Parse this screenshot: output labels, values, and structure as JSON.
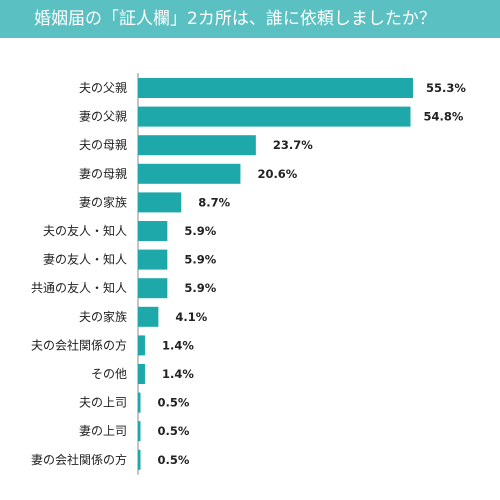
{
  "title": "婚姻届の「証人欄」2カ所は、誰に依頼しましたか？",
  "colors": {
    "header": "#5bc0c2",
    "bar": "#1fa8a9",
    "axis": "#888888"
  },
  "chart_data": {
    "type": "bar",
    "orientation": "horizontal",
    "categories": [
      "夫の父親",
      "妻の父親",
      "夫の母親",
      "妻の母親",
      "妻の家族",
      "夫の友人・知人",
      "妻の友人・知人",
      "共通の友人・知人",
      "夫の家族",
      "夫の会社関係の方",
      "その他",
      "夫の上司",
      "妻の上司",
      "妻の会社関係の方"
    ],
    "values": [
      55.3,
      54.8,
      23.7,
      20.6,
      8.7,
      5.9,
      5.9,
      5.9,
      4.1,
      1.4,
      1.4,
      0.5,
      0.5,
      0.5
    ],
    "value_labels": [
      "55.3%",
      "54.8%",
      "23.7%",
      "20.6%",
      "8.7%",
      "5.9%",
      "5.9%",
      "5.9%",
      "4.1%",
      "1.4%",
      "1.4%",
      "0.5%",
      "0.5%",
      "0.5%"
    ],
    "xlim": [
      0,
      60
    ],
    "grid": false
  }
}
